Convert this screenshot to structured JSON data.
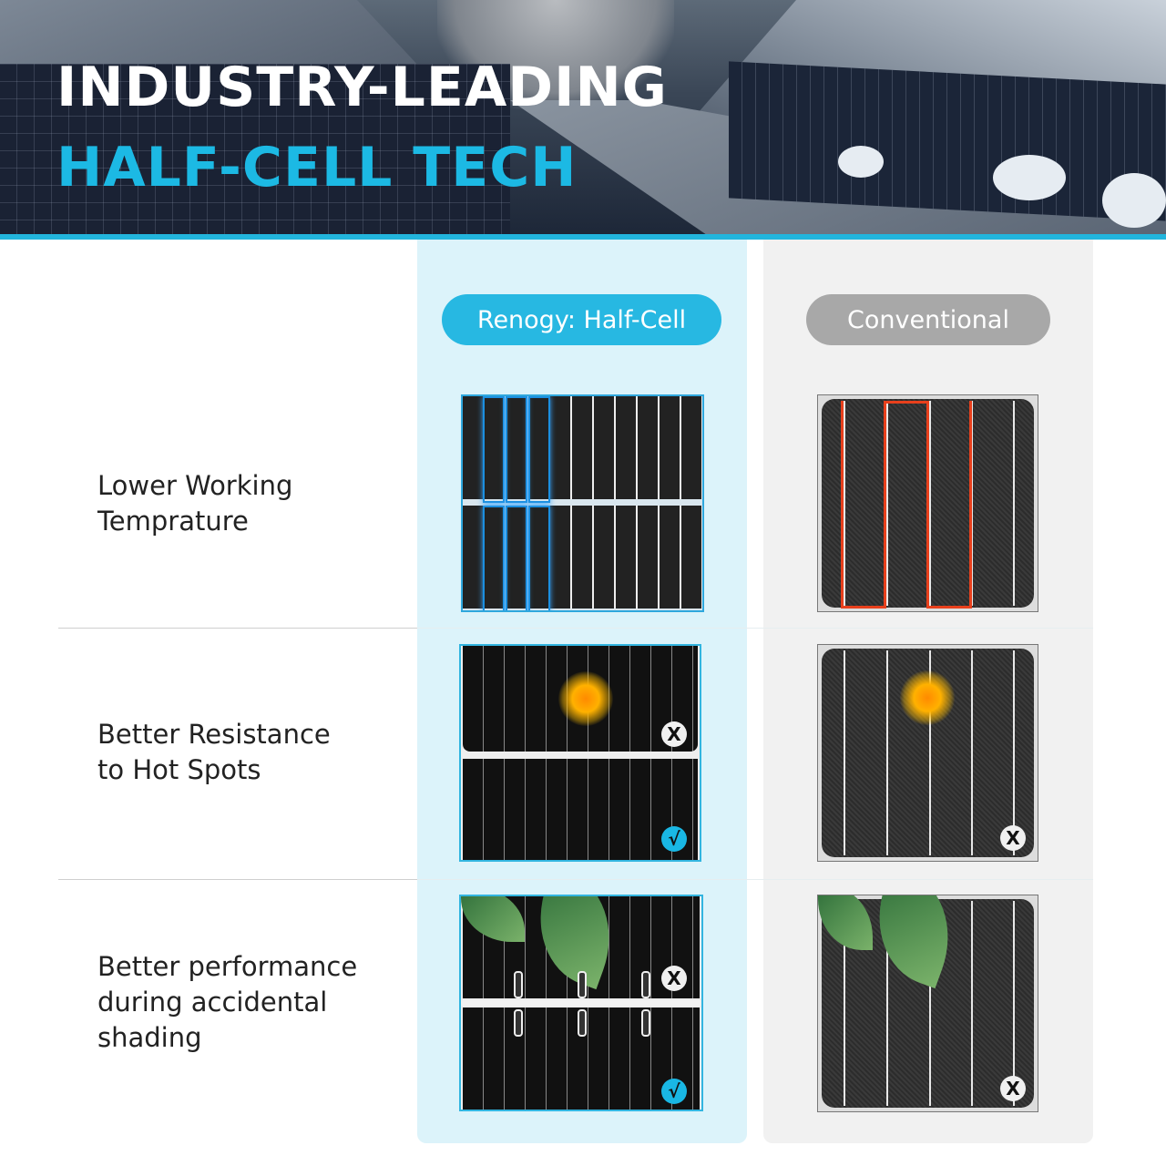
{
  "header": {
    "title_line1": "INDUSTRY-LEADING",
    "title_line2": "HALF-CELL TECH",
    "accent_color": "#1cb9e4"
  },
  "columns": {
    "renogy": "Renogy: Half-Cell",
    "conventional": "Conventional",
    "renogy_color": "#27b8e2",
    "conventional_color": "#a8a8a8"
  },
  "rows": [
    {
      "label_line1": "Lower Working",
      "label_line2": "Temprature",
      "label_line3": ""
    },
    {
      "label_line1": "Better Resistance",
      "label_line2": "to Hot Spots",
      "label_line3": ""
    },
    {
      "label_line1": "Better performance",
      "label_line2": "during accidental",
      "label_line3": "shading"
    }
  ],
  "icons": {
    "fail": "x-circle-icon",
    "pass": "check-circle-icon"
  },
  "marks": {
    "fail": "X",
    "pass": "√"
  }
}
